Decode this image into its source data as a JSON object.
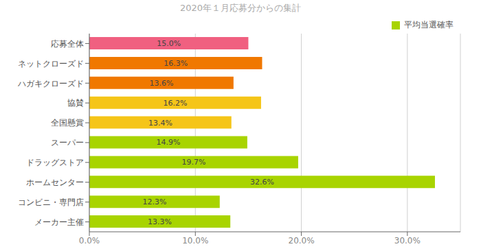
{
  "chart_data": {
    "type": "bar",
    "orientation": "horizontal",
    "title": "2020年１月応募分からの集計",
    "categories": [
      "メーカー主催",
      "コンビニ・専門店",
      "ホームセンター",
      "ドラッグストア",
      "スーパー",
      "全国懸賞",
      "協賛",
      "ハガキクローズド",
      "ネットクローズド",
      "応募全体"
    ],
    "series": [
      {
        "name": "平均当選確率",
        "color": "#a8d400",
        "colors": [
          "#a8d400",
          "#a8d400",
          "#a8d400",
          "#a8d400",
          "#a8d400",
          "#f5c518",
          "#f5c518",
          "#f07800",
          "#f07800",
          "#f06080"
        ],
        "values": [
          13.3,
          12.3,
          32.6,
          19.7,
          14.9,
          13.4,
          16.2,
          13.6,
          16.3,
          15.0
        ],
        "value_labels": [
          "13.3%",
          "12.3%",
          "32.6%",
          "19.7%",
          "14.9%",
          "13.4%",
          "16.2%",
          "13.6%",
          "16.3%",
          "15.0%"
        ]
      }
    ],
    "xlim": [
      0,
      35
    ],
    "xticks": [
      {
        "value": 0,
        "label": "0.0%"
      },
      {
        "value": 10,
        "label": "10.0%"
      },
      {
        "value": 20,
        "label": "20.0%"
      },
      {
        "value": 30,
        "label": "30.0%"
      }
    ],
    "grid": true,
    "legend": "upper right",
    "data_labels": true
  }
}
